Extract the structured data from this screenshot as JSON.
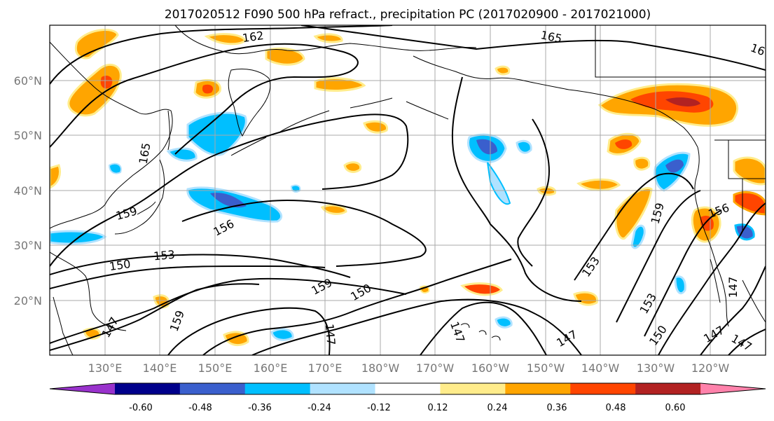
{
  "title": "2017020512 F090 500 hPa refract., precipitation PC (2017020900 - 2017021000)",
  "map": {
    "lon_range": [
      120,
      250
    ],
    "lat_range": [
      10,
      70
    ],
    "lat_labels": [
      "60°N",
      "50°N",
      "40°N",
      "30°N",
      "20°N"
    ],
    "lon_labels": [
      "130°E",
      "140°E",
      "150°E",
      "160°E",
      "170°E",
      "180°W",
      "170°W",
      "160°W",
      "150°W",
      "140°W",
      "130°W",
      "120°W"
    ],
    "grid": true
  },
  "contour_labels": [
    "162",
    "165",
    "16",
    "165",
    "159",
    "156",
    "153",
    "150",
    "159",
    "150",
    "147",
    "147",
    "159",
    "147",
    "153",
    "159",
    "156",
    "153",
    "150",
    "147",
    "147",
    "147",
    "147"
  ],
  "colorbar": {
    "colors": [
      "#9932cc",
      "#00008b",
      "#3a5fcd",
      "#00bfff",
      "#b0e2ff",
      "#ffffff",
      "#ffec8b",
      "#ffa500",
      "#ff4500",
      "#b22222",
      "#ff82ab"
    ],
    "tick_labels": [
      "-0.60",
      "-0.48",
      "-0.36",
      "-0.24",
      "-0.12",
      "0.12",
      "0.24",
      "0.36",
      "0.48",
      "0.60"
    ],
    "extend": "both"
  },
  "palette": {
    "land_outline": "#000000",
    "grid": "#a9a9a9",
    "contour": "#000000"
  }
}
